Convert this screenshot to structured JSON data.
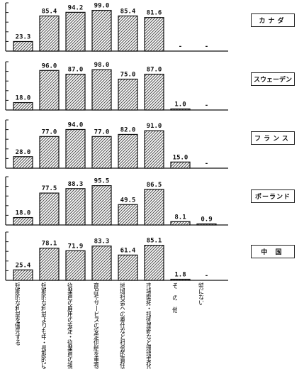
{
  "chart_data": [
    {
      "type": "bar",
      "legend": "カナダ",
      "categories": [
        "短期的な利益を優先する",
        "短期的な利益よりも中・長期的に企業成長を確保する",
        "従業員の雇用の安定・従業員の福祉の向上を図る",
        "商品やサービスの安定供給を重視する",
        "地域社会への奉仕など社会的責任を果たす",
        "市場開拓・技術革新など環境変化に対応する",
        "そ の 他",
        "特にない"
      ],
      "values": [
        23.3,
        85.4,
        94.2,
        99.0,
        85.4,
        81.6,
        null,
        null
      ],
      "labels": [
        "23.3",
        "85.4",
        "94.2",
        "99.0",
        "85.4",
        "81.6",
        "-",
        "-"
      ],
      "ylim": [
        0,
        100
      ]
    },
    {
      "type": "bar",
      "legend": "スウェーデン",
      "categories": [
        "短期的な利益を優先する",
        "短期的な利益よりも中・長期的に企業成長を確保する",
        "従業員の雇用の安定・従業員の福祉の向上を図る",
        "商品やサービスの安定供給を重視する",
        "地域社会への奉仕など社会的責任を果たす",
        "市場開拓・技術革新など環境変化に対応する",
        "そ の 他",
        "特にない"
      ],
      "values": [
        18.0,
        96.0,
        87.0,
        98.0,
        75.0,
        87.0,
        1.0,
        null
      ],
      "labels": [
        "18.0",
        "96.0",
        "87.0",
        "98.0",
        "75.0",
        "87.0",
        "1.0",
        "-"
      ],
      "ylim": [
        0,
        100
      ]
    },
    {
      "type": "bar",
      "legend": "フランス",
      "categories": [
        "短期的な利益を優先する",
        "短期的な利益よりも中・長期的に企業成長を確保する",
        "従業員の雇用の安定・従業員の福祉の向上を図る",
        "商品やサービスの安定供給を重視する",
        "地域社会への奉仕など社会的責任を果たす",
        "市場開拓・技術革新など環境変化に対応する",
        "そ の 他",
        "特にない"
      ],
      "values": [
        28.0,
        77.0,
        94.0,
        77.0,
        82.0,
        91.0,
        15.0,
        null
      ],
      "labels": [
        "28.0",
        "77.0",
        "94.0",
        "77.0",
        "82.0",
        "91.0",
        "15.0",
        "-"
      ],
      "ylim": [
        0,
        100
      ]
    },
    {
      "type": "bar",
      "legend": "ポーランド",
      "categories": [
        "短期的な利益を優先する",
        "短期的な利益よりも中・長期的に企業成長を確保する",
        "従業員の雇用の安定・従業員の福祉の向上を図る",
        "商品やサービスの安定供給を重視する",
        "地域社会への奉仕など社会的責任を果たす",
        "市場開拓・技術革新など環境変化に対応する",
        "そ の 他",
        "特にない"
      ],
      "values": [
        18.0,
        77.5,
        88.3,
        95.5,
        49.5,
        86.5,
        8.1,
        0.9
      ],
      "labels": [
        "18.0",
        "77.5",
        "88.3",
        "95.5",
        "49.5",
        "86.5",
        "8.1",
        "0.9"
      ],
      "ylim": [
        0,
        100
      ]
    },
    {
      "type": "bar",
      "legend": "中 国",
      "categories": [
        "短期的な利益を優先する",
        "短期的な利益よりも中・長期的に企業成長を確保する",
        "従業員の雇用の安定・従業員の福祉の向上を図る",
        "商品やサービスの安定供給を重視する",
        "地域社会への奉仕など社会的責任を果たす",
        "市場開拓・技術革新など環境変化に対応する",
        "そ の 他",
        "特にない"
      ],
      "values": [
        25.4,
        78.1,
        71.9,
        83.3,
        61.4,
        85.1,
        1.8,
        null
      ],
      "labels": [
        "25.4",
        "78.1",
        "71.9",
        "83.3",
        "61.4",
        "85.1",
        "1.8",
        "-"
      ],
      "ylim": [
        0,
        100
      ]
    }
  ],
  "category_labels": [
    "短期的な利益を優先する",
    "短期的な利益よりも中・長期的に企業成長を確保する",
    "従業員の雇用の安定・従業員の福祉の向上を図る",
    "商品やサービスの安定供給を重視する",
    "地域社会への奉仕など社会的責任を果たす",
    "市場開拓・技術革新など環境変化に対応する",
    "そ の 他",
    "特にない"
  ],
  "colors": {
    "bar_border": "#111111",
    "bar_hatch": "#555555",
    "axis": "#111111"
  }
}
